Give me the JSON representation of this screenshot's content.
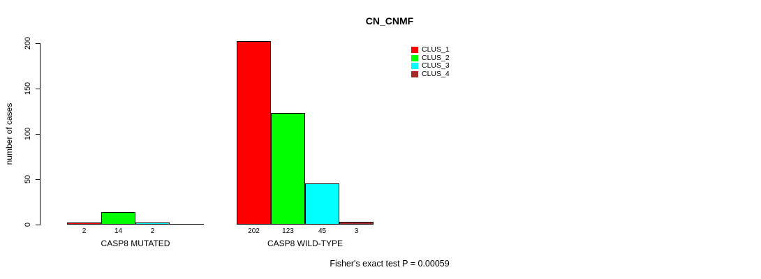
{
  "window": {
    "background": "#FFFFFF"
  },
  "chart_data": {
    "type": "bar",
    "title": "CN_CNMF",
    "ylabel": "number of cases",
    "xlabel": "",
    "ylim": [
      0,
      200
    ],
    "yticks": [
      0,
      50,
      100,
      150,
      200
    ],
    "grid": false,
    "legend_position": "upper-right",
    "categories": [
      "CASP8 MUTATED",
      "CASP8 WILD-TYPE"
    ],
    "series": [
      {
        "name": "CLUS_1",
        "color": "#FF0000",
        "values": [
          2,
          202
        ]
      },
      {
        "name": "CLUS_2",
        "color": "#00FF00",
        "values": [
          14,
          123
        ]
      },
      {
        "name": "CLUS_3",
        "color": "#00FFFF",
        "values": [
          2,
          45
        ]
      },
      {
        "name": "CLUS_4",
        "color": "#A52A2A",
        "values": [
          0,
          3
        ]
      }
    ],
    "bar_labels": [
      [
        "2",
        "14",
        "2",
        ""
      ],
      [
        "202",
        "123",
        "45",
        "3"
      ]
    ],
    "annotation": "Fisher's exact test P = 0.00059"
  }
}
